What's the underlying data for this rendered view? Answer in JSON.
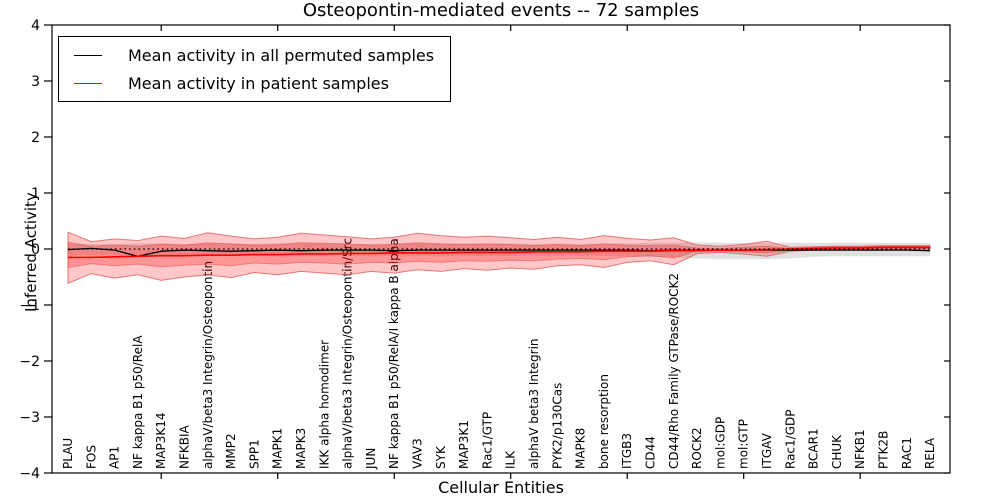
{
  "title": "Osteopontin-mediated events -- 72 samples",
  "axes": {
    "ylabel": "Inferred Activity",
    "xlabel": "Cellular Entities",
    "ytick_labels": [
      "4",
      "3",
      "2",
      "1",
      "0",
      "−1",
      "−2",
      "−3",
      "−4"
    ],
    "ytick_values": [
      4,
      3,
      2,
      1,
      0,
      -1,
      -2,
      -3,
      -4
    ]
  },
  "legend": {
    "items": [
      {
        "label": "Mean activity in all permuted samples",
        "color": "#000000"
      },
      {
        "label": "Mean activity in patient samples",
        "color": "#ff0000"
      }
    ]
  },
  "chart_data": {
    "type": "line",
    "title": "Osteopontin-mediated events -- 72 samples",
    "xlabel": "Cellular Entities",
    "ylabel": "Inferred Activity",
    "ylim": [
      -4,
      4
    ],
    "grid": false,
    "legend_position": "upper left",
    "zero_line": true,
    "categories": [
      "PLAU",
      "FOS",
      "AP1",
      "NF kappa B1 p50/RelA",
      "MAP3K14",
      "NFKBIA",
      "alphaV/beta3 Integrin/Osteopontin",
      "MMP2",
      "SPP1",
      "MAPK1",
      "MAPK3",
      "IKK alpha homodimer",
      "alphaV/beta3 Integrin/Osteopontin/Src",
      "JUN",
      "NF kappa B1 p50/RelA/I kappa B alpha",
      "VAV3",
      "SYK",
      "MAP3K1",
      "Rac1/GTP",
      "ILK",
      "alphaV beta3 Integrin",
      "PYK2/p130Cas",
      "MAPK8",
      "bone resorption",
      "ITGB3",
      "CD44",
      "CD44/Rho Family GTPase/ROCK2",
      "ROCK2",
      "mol:GDP",
      "mol:GTP",
      "ITGAV",
      "Rac1/GDP",
      "BCAR1",
      "CHUK",
      "NFKB1",
      "PTK2B",
      "RAC1",
      "RELA"
    ],
    "series": [
      {
        "name": "Mean activity in all permuted samples",
        "color": "#000000",
        "width": 1.3,
        "values": [
          -0.01,
          0.01,
          -0.02,
          -0.13,
          -0.04,
          -0.02,
          -0.03,
          -0.04,
          -0.03,
          -0.02,
          -0.03,
          -0.02,
          -0.02,
          -0.02,
          -0.03,
          -0.02,
          -0.02,
          -0.02,
          -0.02,
          -0.02,
          -0.02,
          -0.02,
          -0.02,
          -0.02,
          -0.02,
          -0.03,
          -0.02,
          -0.02,
          -0.02,
          -0.02,
          -0.02,
          -0.02,
          -0.02,
          -0.02,
          -0.02,
          -0.02,
          -0.02,
          -0.03
        ]
      },
      {
        "name": "Mean activity in patient samples",
        "color": "#ff0000",
        "width": 1.6,
        "values": [
          -0.15,
          -0.15,
          -0.14,
          -0.13,
          -0.12,
          -0.12,
          -0.11,
          -0.11,
          -0.1,
          -0.1,
          -0.09,
          -0.09,
          -0.08,
          -0.08,
          -0.07,
          -0.07,
          -0.07,
          -0.06,
          -0.06,
          -0.06,
          -0.05,
          -0.05,
          -0.05,
          -0.04,
          -0.04,
          -0.04,
          -0.03,
          -0.03,
          -0.02,
          -0.02,
          -0.01,
          0.0,
          0.01,
          0.02,
          0.02,
          0.03,
          0.03,
          0.03
        ]
      }
    ],
    "bands": [
      {
        "name": "permuted-samples-band",
        "fill": "#000000",
        "fill_opacity": 0.12,
        "stroke": "none",
        "stroke_opacity": 0,
        "hi": [
          0.1,
          0.09,
          0.09,
          0.1,
          0.1,
          0.09,
          0.1,
          0.1,
          0.09,
          0.1,
          0.1,
          0.1,
          0.1,
          0.09,
          0.1,
          0.1,
          0.1,
          0.1,
          0.1,
          0.1,
          0.09,
          0.1,
          0.09,
          0.1,
          0.1,
          0.11,
          0.11,
          0.12,
          0.11,
          0.11,
          0.11,
          0.11,
          0.11,
          0.11,
          0.11,
          0.11,
          0.11,
          0.11
        ],
        "lo": [
          -0.12,
          -0.11,
          -0.11,
          -0.15,
          -0.12,
          -0.12,
          -0.12,
          -0.13,
          -0.12,
          -0.12,
          -0.12,
          -0.12,
          -0.12,
          -0.12,
          -0.12,
          -0.12,
          -0.12,
          -0.12,
          -0.12,
          -0.12,
          -0.12,
          -0.12,
          -0.12,
          -0.12,
          -0.13,
          -0.14,
          -0.15,
          -0.17,
          -0.18,
          -0.18,
          -0.18,
          -0.17,
          -0.14,
          -0.13,
          -0.13,
          -0.13,
          -0.13,
          -0.13
        ]
      },
      {
        "name": "patient-band-outer",
        "fill": "#ff0000",
        "fill_opacity": 0.22,
        "stroke": "#e05a5a",
        "stroke_opacity": 0.8,
        "hi": [
          0.3,
          0.13,
          0.18,
          0.15,
          0.23,
          0.19,
          0.29,
          0.23,
          0.18,
          0.21,
          0.28,
          0.25,
          0.22,
          0.18,
          0.21,
          0.28,
          0.24,
          0.21,
          0.23,
          0.2,
          0.17,
          0.21,
          0.17,
          0.24,
          0.19,
          0.16,
          0.2,
          0.07,
          0.05,
          0.08,
          0.14,
          0.03,
          0.04,
          0.05,
          0.05,
          0.06,
          0.06,
          0.06
        ],
        "lo": [
          -0.61,
          -0.44,
          -0.52,
          -0.46,
          -0.56,
          -0.5,
          -0.46,
          -0.51,
          -0.42,
          -0.46,
          -0.4,
          -0.43,
          -0.46,
          -0.4,
          -0.43,
          -0.37,
          -0.4,
          -0.35,
          -0.38,
          -0.34,
          -0.36,
          -0.3,
          -0.28,
          -0.33,
          -0.24,
          -0.21,
          -0.28,
          -0.08,
          -0.06,
          -0.09,
          -0.13,
          -0.04,
          -0.02,
          -0.01,
          -0.01,
          0.0,
          0.0,
          0.0
        ]
      },
      {
        "name": "patient-band-inner",
        "fill": "#ff0000",
        "fill_opacity": 0.25,
        "stroke": "#e05a5a",
        "stroke_opacity": 0.6,
        "hi": [
          0.12,
          0.05,
          0.07,
          0.05,
          0.09,
          0.07,
          0.11,
          0.09,
          0.07,
          0.08,
          0.11,
          0.1,
          0.09,
          0.07,
          0.08,
          0.11,
          0.09,
          0.08,
          0.09,
          0.08,
          0.06,
          0.08,
          0.06,
          0.09,
          0.07,
          0.06,
          0.07,
          0.02,
          0.01,
          0.03,
          0.05,
          0.01,
          0.03,
          0.04,
          0.04,
          0.05,
          0.05,
          0.05
        ],
        "lo": [
          -0.33,
          -0.26,
          -0.3,
          -0.27,
          -0.32,
          -0.29,
          -0.27,
          -0.3,
          -0.25,
          -0.27,
          -0.24,
          -0.25,
          -0.27,
          -0.24,
          -0.25,
          -0.22,
          -0.24,
          -0.21,
          -0.22,
          -0.2,
          -0.21,
          -0.18,
          -0.17,
          -0.19,
          -0.14,
          -0.12,
          -0.16,
          -0.04,
          -0.03,
          -0.05,
          -0.07,
          -0.02,
          -0.01,
          0.0,
          0.0,
          0.01,
          0.01,
          0.01
        ]
      }
    ]
  }
}
